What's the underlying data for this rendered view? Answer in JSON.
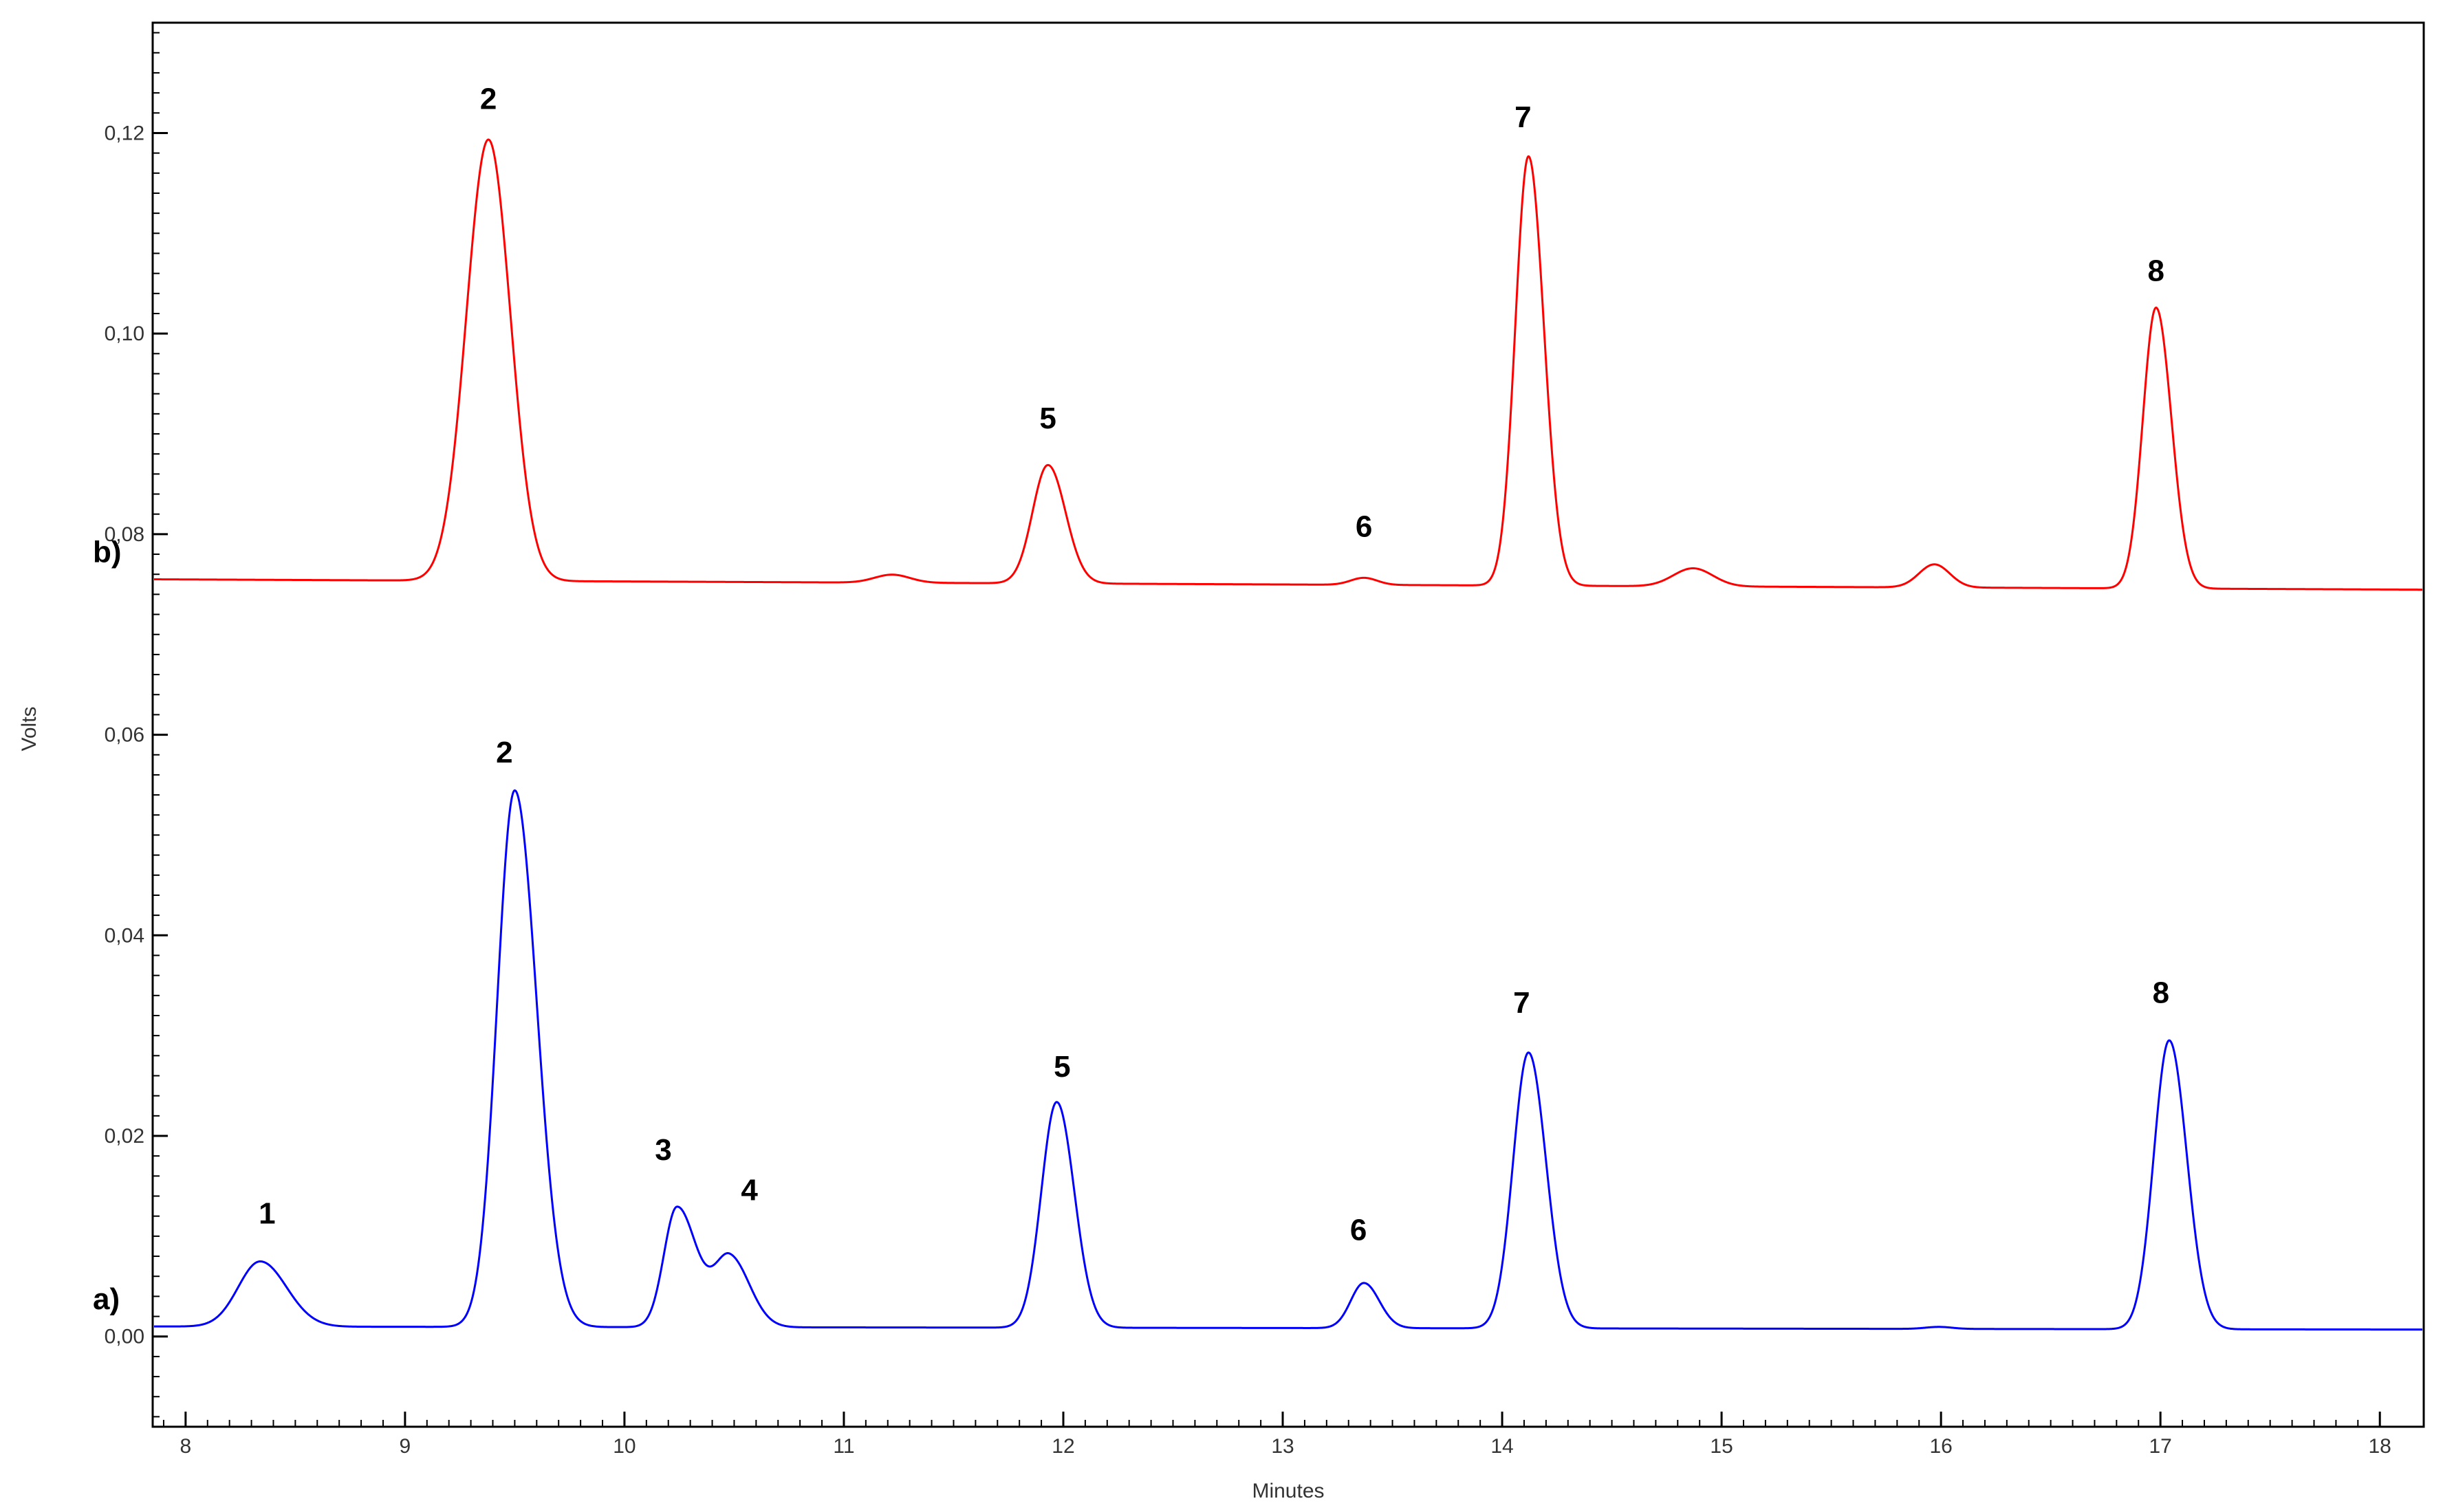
{
  "chart_data": {
    "type": "line",
    "xlabel": "Minutes",
    "ylabel": "Volts",
    "xlim": [
      7.85,
      18.2
    ],
    "ylim": [
      -0.009,
      0.131
    ],
    "x_ticks": [
      8,
      9,
      10,
      11,
      12,
      13,
      14,
      15,
      16,
      17,
      18
    ],
    "x_tick_labels": [
      "8",
      "9",
      "10",
      "11",
      "12",
      "13",
      "14",
      "15",
      "16",
      "17",
      "18"
    ],
    "y_ticks": [
      0.0,
      0.02,
      0.04,
      0.06,
      0.08,
      0.1,
      0.12
    ],
    "y_tick_labels": [
      "0,00",
      "0,02",
      "0,04",
      "0,06",
      "0,08",
      "0,10",
      "0,12"
    ],
    "grid": false,
    "series": [
      {
        "label": "a)",
        "color": "#0000ff",
        "baseline": 0.001,
        "peaks": [
          {
            "label": "1",
            "x": 8.34,
            "y": 0.0075
          },
          {
            "label": "2",
            "x": 9.5,
            "y": 0.0545
          },
          {
            "label": "3",
            "x": 10.24,
            "y": 0.0145
          },
          {
            "label": "4",
            "x": 10.46,
            "y": 0.0105
          },
          {
            "label": "5",
            "x": 11.97,
            "y": 0.0235
          },
          {
            "label": "6",
            "x": 13.37,
            "y": 0.0055
          },
          {
            "label": "7",
            "x": 14.12,
            "y": 0.0285
          },
          {
            "label": "8",
            "x": 17.04,
            "y": 0.0295
          }
        ]
      },
      {
        "label": "b)",
        "color": "#ff0000",
        "baseline": 0.0755,
        "peaks": [
          {
            "label": "2",
            "x": 9.38,
            "y": 0.1195
          },
          {
            "label": "5",
            "x": 11.93,
            "y": 0.087
          },
          {
            "label": "6",
            "x": 13.37,
            "y": 0.0755
          },
          {
            "label": "7",
            "x": 14.12,
            "y": 0.1175
          },
          {
            "label": "8",
            "x": 16.98,
            "y": 0.1025
          }
        ]
      }
    ]
  }
}
